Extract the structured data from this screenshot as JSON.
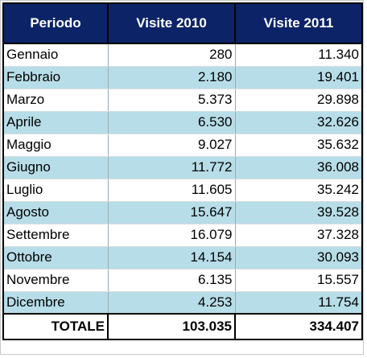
{
  "chart_data": {
    "type": "table",
    "columns": [
      "Periodo",
      "Visite 2010",
      "Visite 2011"
    ],
    "rows": [
      [
        "Gennaio",
        "280",
        "11.340"
      ],
      [
        "Febbraio",
        "2.180",
        "19.401"
      ],
      [
        "Marzo",
        "5.373",
        "29.898"
      ],
      [
        "Aprile",
        "6.530",
        "32.626"
      ],
      [
        "Maggio",
        "9.027",
        "35.632"
      ],
      [
        "Giugno",
        "11.772",
        "36.008"
      ],
      [
        "Luglio",
        "11.605",
        "35.242"
      ],
      [
        "Agosto",
        "15.647",
        "39.528"
      ],
      [
        "Settembre",
        "16.079",
        "37.328"
      ],
      [
        "Ottobre",
        "14.154",
        "30.093"
      ],
      [
        "Novembre",
        "6.135",
        "15.557"
      ],
      [
        "Dicembre",
        "4.253",
        "11.754"
      ]
    ],
    "total": {
      "label": "TOTALE",
      "values": [
        "103.035",
        "334.407"
      ]
    },
    "colors": {
      "header_bg": "#0c2367",
      "header_text": "#ffffff",
      "band": "#b7dde8",
      "plain": "#ffffff"
    }
  }
}
